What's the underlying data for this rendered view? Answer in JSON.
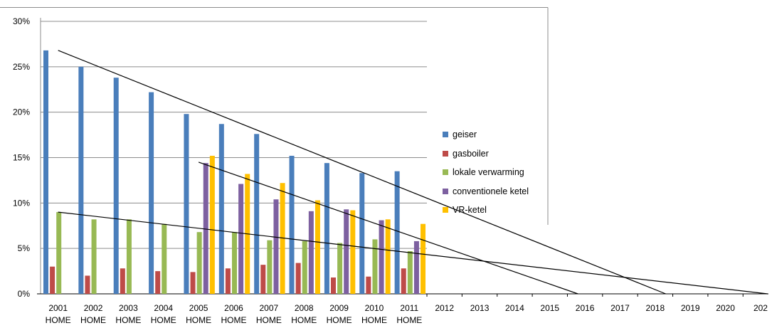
{
  "chart_data": {
    "type": "bar",
    "categories": [
      [
        "2001",
        "HOME"
      ],
      [
        "2002",
        "HOME"
      ],
      [
        "2003",
        "HOME"
      ],
      [
        "2004",
        "HOME"
      ],
      [
        "2005",
        "HOME"
      ],
      [
        "2006",
        "HOME"
      ],
      [
        "2007",
        "HOME"
      ],
      [
        "2008",
        "HOME"
      ],
      [
        "2009",
        "HOME"
      ],
      [
        "2010",
        "HOME"
      ],
      [
        "2011",
        "HOME"
      ]
    ],
    "extended_x_labels": [
      "2012",
      "2013",
      "2014",
      "2015",
      "2016",
      "2017",
      "2018",
      "2019",
      "2020",
      "202"
    ],
    "y_ticks": [
      "0%",
      "5%",
      "10%",
      "15%",
      "20%",
      "25%",
      "30%"
    ],
    "ylim": [
      0,
      30
    ],
    "grid": true,
    "legend_position": "right",
    "series": [
      {
        "name": "geiser",
        "color": "#4a7ebb",
        "values": [
          26.8,
          25.0,
          23.8,
          22.2,
          19.8,
          18.7,
          17.6,
          15.2,
          14.4,
          13.3,
          13.5
        ]
      },
      {
        "name": "gasboiler",
        "color": "#be4b48",
        "values": [
          3.0,
          2.0,
          2.8,
          2.5,
          2.4,
          2.8,
          3.2,
          3.4,
          1.8,
          1.9,
          2.8
        ]
      },
      {
        "name": "lokale verwarming",
        "color": "#98b954",
        "values": [
          9.0,
          8.2,
          8.2,
          7.7,
          6.8,
          6.8,
          5.9,
          5.8,
          5.6,
          6.0,
          4.7
        ]
      },
      {
        "name": "conventionele ketel",
        "color": "#7d60a0",
        "values": [
          null,
          null,
          null,
          null,
          14.4,
          12.1,
          10.4,
          9.1,
          9.3,
          8.1,
          5.8
        ]
      },
      {
        "name": "VR-ketel",
        "color": "#ffc000",
        "values": [
          null,
          null,
          null,
          null,
          15.2,
          13.2,
          12.2,
          10.3,
          9.2,
          8.2,
          7.7
        ]
      }
    ],
    "trend_lines": [
      {
        "from": [
          2001,
          26.8
        ],
        "to": [
          2018.3,
          0
        ]
      },
      {
        "from": [
          2005,
          14.5
        ],
        "to": [
          2015.8,
          0
        ]
      },
      {
        "from": [
          2001,
          9.0
        ],
        "to": [
          2021.2,
          0
        ]
      }
    ]
  }
}
